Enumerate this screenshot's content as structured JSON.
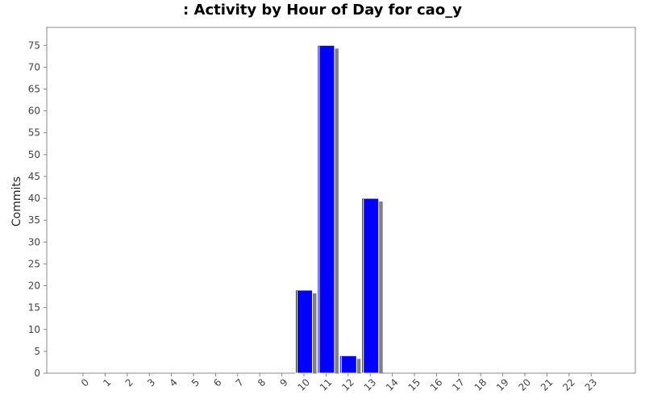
{
  "chart_data": {
    "type": "bar",
    "title": ": Activity by Hour of Day for cao_y",
    "xlabel": "",
    "ylabel": "Commits",
    "ylim": [
      0,
      78
    ],
    "y_ticks": [
      0,
      5,
      10,
      15,
      20,
      25,
      30,
      35,
      40,
      45,
      50,
      55,
      60,
      65,
      70,
      75
    ],
    "categories": [
      "0",
      "1",
      "2",
      "3",
      "4",
      "5",
      "6",
      "7",
      "8",
      "9",
      "10",
      "11",
      "12",
      "13",
      "14",
      "15",
      "16",
      "17",
      "18",
      "19",
      "20",
      "21",
      "22",
      "23"
    ],
    "values": [
      0,
      0,
      0,
      0,
      0,
      0,
      0,
      0,
      0,
      0,
      19,
      75,
      4,
      40,
      0,
      0,
      0,
      0,
      0,
      0,
      0,
      0,
      0,
      0
    ],
    "bar_color": "#0000ff",
    "shadow_color": "#808080",
    "grid": false,
    "legend": "none"
  }
}
